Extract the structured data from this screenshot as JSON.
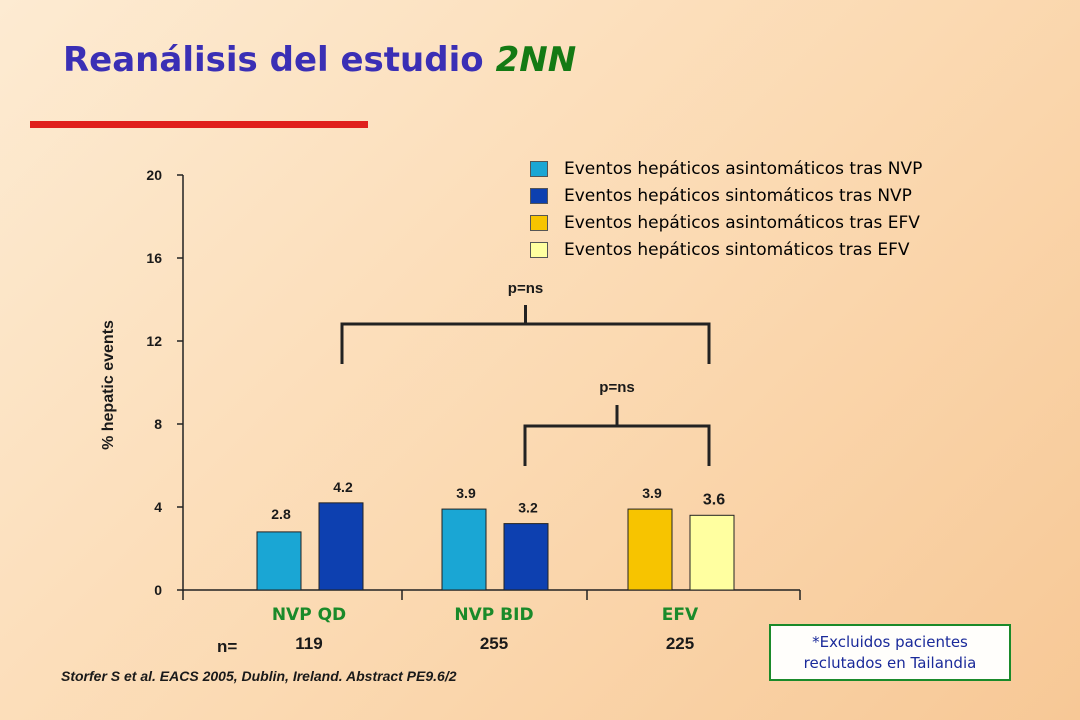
{
  "slide": {
    "title": "Reanálisis del estudio",
    "title_study": "2NN",
    "reference": "Storfer S et al. EACS 2005, Dublin, Ireland. Abstract PE9.6/2",
    "note": {
      "line1": "*Excluidos pacientes",
      "line2": "reclutados en Tailandia"
    }
  },
  "colors": {
    "title": "#3a2fb5",
    "study": "#147a14",
    "rule": "#e0201c",
    "group_label": "#1a8a2a"
  },
  "chart_data": {
    "type": "bar",
    "ylabel": "% hepatic events",
    "ylim": [
      0,
      20
    ],
    "yticks": [
      0,
      4,
      8,
      12,
      16,
      20
    ],
    "n_label": "n=",
    "legend": [
      {
        "label": "Eventos hepáticos asintomáticos tras NVP",
        "color": "#1aa6d4"
      },
      {
        "label": "Eventos hepáticos sintomáticos tras NVP",
        "color": "#0d40b0"
      },
      {
        "label": "Eventos hepáticos asintomáticos tras EFV",
        "color": "#f7c400"
      },
      {
        "label": "Eventos hepáticos sintomáticos tras EFV",
        "color": "#ffffa0"
      }
    ],
    "groups": [
      {
        "name": "NVP QD",
        "n": "119",
        "bars": [
          {
            "series": 0,
            "value": 2.8,
            "label": "2.8"
          },
          {
            "series": 1,
            "value": 4.2,
            "label": "4.2"
          }
        ]
      },
      {
        "name": "NVP BID",
        "n": "255",
        "bars": [
          {
            "series": 0,
            "value": 3.9,
            "label": "3.9"
          },
          {
            "series": 1,
            "value": 3.2,
            "label": "3.2"
          }
        ]
      },
      {
        "name": "EFV",
        "n": "225",
        "bars": [
          {
            "series": 2,
            "value": 3.9,
            "label": "3.9"
          },
          {
            "series": 3,
            "value": 3.6,
            "label": "3.6"
          }
        ]
      }
    ],
    "comparisons": [
      {
        "label": "p=ns",
        "from_group": 0,
        "to_group": 2
      },
      {
        "label": "p=ns",
        "from_group": 1,
        "to_group": 2
      }
    ]
  }
}
